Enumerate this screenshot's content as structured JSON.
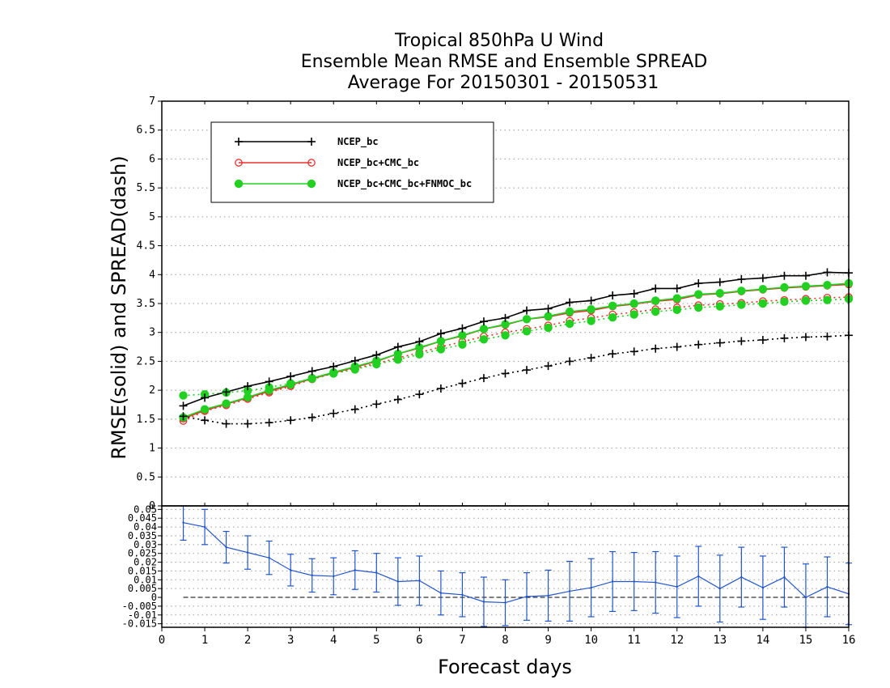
{
  "chart_data": {
    "type": "line",
    "title_lines": [
      "Tropical 850hPa U Wind",
      "Ensemble Mean RMSE and Ensemble SPREAD",
      "Average For 20150301 - 20150531"
    ],
    "xlabel": "Forecast days",
    "ylabel": "RMSE(solid) and SPREAD(dash)",
    "xlim": [
      0,
      16
    ],
    "x_ticks": [
      "0",
      "1",
      "2",
      "3",
      "4",
      "5",
      "6",
      "7",
      "8",
      "9",
      "10",
      "11",
      "12",
      "13",
      "14",
      "15",
      "16"
    ],
    "top_panel": {
      "ylim": [
        0,
        7
      ],
      "y_ticks": [
        "0.5",
        "1",
        "1.5",
        "2",
        "2.5",
        "3",
        "3.5",
        "4",
        "4.5",
        "5",
        "5.5",
        "6",
        "6.5",
        "7"
      ],
      "grid": true,
      "legend_position": "top-left",
      "x": [
        0.5,
        1,
        1.5,
        2,
        2.5,
        3,
        3.5,
        4,
        4.5,
        5,
        5.5,
        6,
        6.5,
        7,
        7.5,
        8,
        8.5,
        9,
        9.5,
        10,
        10.5,
        11,
        11.5,
        12,
        12.5,
        13,
        13.5,
        14,
        14.5,
        15,
        15.5,
        16
      ],
      "series": [
        {
          "name": "NCEP_bc",
          "color": "#000000",
          "marker": "plus",
          "rmse": [
            1.73,
            1.87,
            1.97,
            2.07,
            2.15,
            2.24,
            2.33,
            2.41,
            2.51,
            2.61,
            2.75,
            2.84,
            2.98,
            3.07,
            3.19,
            3.25,
            3.38,
            3.41,
            3.52,
            3.55,
            3.64,
            3.67,
            3.76,
            3.76,
            3.85,
            3.87,
            3.92,
            3.94,
            3.98,
            3.98,
            4.04,
            4.03
          ],
          "spread": [
            1.55,
            1.48,
            1.42,
            1.42,
            1.44,
            1.48,
            1.53,
            1.6,
            1.67,
            1.76,
            1.84,
            1.93,
            2.03,
            2.12,
            2.21,
            2.29,
            2.35,
            2.42,
            2.5,
            2.56,
            2.63,
            2.67,
            2.72,
            2.75,
            2.79,
            2.82,
            2.85,
            2.87,
            2.9,
            2.92,
            2.93,
            2.95
          ]
        },
        {
          "name": "NCEP_bc+CMC_bc",
          "color": "#e8322d",
          "marker": "open-circle",
          "rmse": [
            1.51,
            1.65,
            1.76,
            1.87,
            1.98,
            2.09,
            2.2,
            2.3,
            2.4,
            2.5,
            2.63,
            2.73,
            2.85,
            2.94,
            3.06,
            3.13,
            3.23,
            3.27,
            3.34,
            3.38,
            3.45,
            3.49,
            3.54,
            3.57,
            3.65,
            3.67,
            3.71,
            3.74,
            3.77,
            3.79,
            3.81,
            3.83
          ],
          "spread": [
            1.47,
            1.64,
            1.74,
            1.85,
            1.96,
            2.07,
            2.19,
            2.29,
            2.38,
            2.46,
            2.56,
            2.65,
            2.75,
            2.84,
            2.93,
            3.0,
            3.06,
            3.12,
            3.2,
            3.25,
            3.31,
            3.35,
            3.4,
            3.43,
            3.47,
            3.49,
            3.51,
            3.54,
            3.56,
            3.58,
            3.6,
            3.61
          ]
        },
        {
          "name": "NCEP_bc+CMC_bc+FNMOC_bc",
          "color": "#22d022",
          "marker": "filled-circle",
          "rmse": [
            1.53,
            1.67,
            1.77,
            1.88,
            2.0,
            2.1,
            2.21,
            2.31,
            2.41,
            2.51,
            2.63,
            2.74,
            2.85,
            2.95,
            3.06,
            3.14,
            3.23,
            3.28,
            3.36,
            3.4,
            3.46,
            3.5,
            3.55,
            3.59,
            3.66,
            3.68,
            3.72,
            3.75,
            3.78,
            3.8,
            3.82,
            3.85
          ],
          "spread": [
            1.91,
            1.93,
            1.96,
            1.99,
            2.05,
            2.12,
            2.2,
            2.29,
            2.36,
            2.45,
            2.53,
            2.62,
            2.71,
            2.79,
            2.88,
            2.95,
            3.02,
            3.08,
            3.15,
            3.2,
            3.26,
            3.31,
            3.36,
            3.39,
            3.43,
            3.45,
            3.48,
            3.5,
            3.53,
            3.55,
            3.56,
            3.58
          ]
        }
      ]
    },
    "bottom_panel": {
      "ylim": [
        -0.017,
        0.052
      ],
      "y_ticks": [
        "-0.015",
        "-0.01",
        "-0.005",
        "0",
        "0.005",
        "0.01",
        "0.015",
        "0.02",
        "0.025",
        "0.03",
        "0.035",
        "0.04",
        "0.045",
        "0.05"
      ],
      "grid": true,
      "zero_line": true,
      "color": "#2255cc",
      "x": [
        0.5,
        1,
        1.5,
        2,
        2.5,
        3,
        3.5,
        4,
        4.5,
        5,
        5.5,
        6,
        6.5,
        7,
        7.5,
        8,
        8.5,
        9,
        9.5,
        10,
        10.5,
        11,
        11.5,
        12,
        12.5,
        13,
        13.5,
        14,
        14.5,
        15,
        15.5,
        16
      ],
      "values": [
        0.0425,
        0.04,
        0.0285,
        0.0255,
        0.0225,
        0.0155,
        0.0125,
        0.012,
        0.0155,
        0.014,
        0.009,
        0.0095,
        0.0025,
        0.0015,
        -0.0025,
        -0.003,
        0.0005,
        0.001,
        0.0035,
        0.0055,
        0.009,
        0.009,
        0.0085,
        0.006,
        0.012,
        0.005,
        0.0115,
        0.0055,
        0.0115,
        0.0,
        0.006,
        0.002
      ],
      "errors": [
        0.01,
        0.01,
        0.009,
        0.0095,
        0.0095,
        0.009,
        0.0095,
        0.0105,
        0.011,
        0.011,
        0.0135,
        0.014,
        0.0125,
        0.0125,
        0.014,
        0.013,
        0.0135,
        0.0145,
        0.017,
        0.0165,
        0.017,
        0.0165,
        0.0175,
        0.0175,
        0.017,
        0.019,
        0.017,
        0.018,
        0.017,
        0.019,
        0.017,
        0.0175
      ]
    }
  }
}
